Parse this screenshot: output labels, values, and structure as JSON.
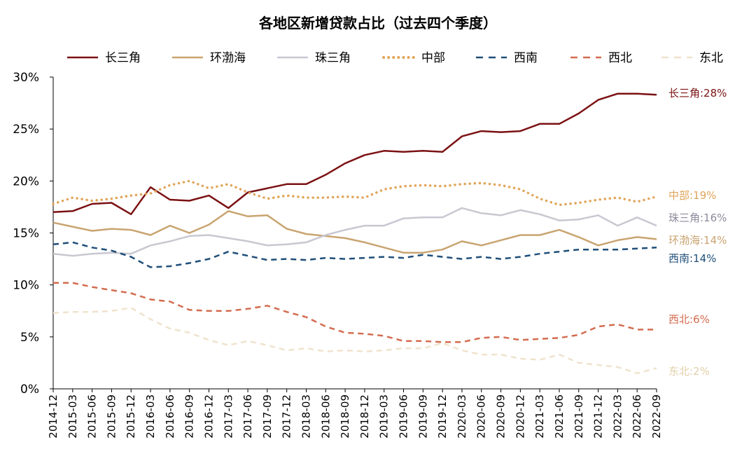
{
  "chart_data": {
    "type": "line",
    "title": "各地区新增贷款占比（过去四个季度）",
    "xlabel": "",
    "ylabel": "",
    "ylim": [
      0,
      30
    ],
    "yticks": [
      "0%",
      "5%",
      "10%",
      "15%",
      "20%",
      "25%",
      "30%"
    ],
    "grid": false,
    "legend_position": "top",
    "x": [
      "2014-12",
      "2015-03",
      "2015-06",
      "2015-09",
      "2015-12",
      "2016-03",
      "2016-06",
      "2016-09",
      "2016-12",
      "2017-03",
      "2017-06",
      "2017-09",
      "2017-12",
      "2018-03",
      "2018-06",
      "2018-09",
      "2018-12",
      "2019-03",
      "2019-06",
      "2019-09",
      "2019-12",
      "2020-03",
      "2020-06",
      "2020-09",
      "2020-12",
      "2021-03",
      "2021-06",
      "2021-09",
      "2021-12",
      "2022-03",
      "2022-06",
      "2022-09"
    ],
    "series": [
      {
        "name": "长三角",
        "color": "#7b1113",
        "dash": "solid",
        "end_label": "长三角:28%",
        "values": [
          17.0,
          17.1,
          17.8,
          17.9,
          16.8,
          19.4,
          18.2,
          18.1,
          18.6,
          17.4,
          18.9,
          19.3,
          19.7,
          19.7,
          20.6,
          21.7,
          22.5,
          22.9,
          22.8,
          22.9,
          22.8,
          24.3,
          24.8,
          24.7,
          24.8,
          25.5,
          25.5,
          26.5,
          27.8,
          28.4,
          28.4,
          28.3
        ]
      },
      {
        "name": "环渤海",
        "color": "#c9a470",
        "dash": "solid",
        "end_label": "环渤海:14%",
        "values": [
          16.0,
          15.6,
          15.2,
          15.4,
          15.3,
          14.8,
          15.7,
          15.0,
          15.8,
          17.1,
          16.6,
          16.7,
          15.4,
          14.9,
          14.7,
          14.5,
          14.1,
          13.6,
          13.1,
          13.1,
          13.4,
          14.2,
          13.8,
          14.3,
          14.8,
          14.8,
          15.3,
          14.6,
          13.8,
          14.3,
          14.6,
          14.4
        ]
      },
      {
        "name": "珠三角",
        "color": "#c8c8d2",
        "dash": "solid",
        "end_label": "珠三角:16%",
        "values": [
          13.0,
          12.8,
          13.0,
          13.1,
          13.0,
          13.8,
          14.2,
          14.7,
          14.8,
          14.5,
          14.2,
          13.8,
          13.9,
          14.1,
          14.8,
          15.3,
          15.7,
          15.7,
          16.4,
          16.5,
          16.5,
          17.4,
          16.9,
          16.7,
          17.2,
          16.8,
          16.2,
          16.3,
          16.7,
          15.7,
          16.5,
          15.7
        ]
      },
      {
        "name": "中部",
        "color": "#e1a55a",
        "dash": "dot",
        "end_label": "中部:19%",
        "values": [
          17.8,
          18.4,
          18.1,
          18.3,
          18.6,
          18.8,
          19.6,
          20.0,
          19.3,
          19.7,
          18.9,
          18.3,
          18.6,
          18.4,
          18.4,
          18.5,
          18.4,
          19.2,
          19.5,
          19.6,
          19.5,
          19.7,
          19.8,
          19.6,
          19.2,
          18.3,
          17.7,
          17.9,
          18.2,
          18.4,
          18.0,
          18.5
        ]
      },
      {
        "name": "西南",
        "color": "#1f4e79",
        "dash": "dash",
        "end_label": "西南:14%",
        "values": [
          13.9,
          14.1,
          13.6,
          13.3,
          12.7,
          11.7,
          11.8,
          12.1,
          12.5,
          13.2,
          12.8,
          12.4,
          12.5,
          12.4,
          12.6,
          12.5,
          12.6,
          12.7,
          12.6,
          12.9,
          12.7,
          12.5,
          12.7,
          12.5,
          12.7,
          13.0,
          13.2,
          13.4,
          13.4,
          13.4,
          13.5,
          13.6
        ]
      },
      {
        "name": "西北",
        "color": "#d36c50",
        "dash": "dash",
        "end_label": "西北:6%",
        "values": [
          10.2,
          10.2,
          9.8,
          9.5,
          9.2,
          8.6,
          8.4,
          7.6,
          7.5,
          7.5,
          7.7,
          8.0,
          7.4,
          6.9,
          6.0,
          5.4,
          5.3,
          5.1,
          4.6,
          4.6,
          4.5,
          4.5,
          4.9,
          5.0,
          4.7,
          4.8,
          4.9,
          5.2,
          6.0,
          6.2,
          5.7,
          5.7
        ]
      },
      {
        "name": "东北",
        "color": "#efe3cd",
        "dash": "dash",
        "end_label": "东北:2%",
        "values": [
          7.3,
          7.4,
          7.4,
          7.5,
          7.8,
          6.7,
          5.8,
          5.4,
          4.7,
          4.2,
          4.6,
          4.2,
          3.7,
          3.9,
          3.6,
          3.7,
          3.6,
          3.7,
          3.9,
          3.9,
          4.4,
          3.7,
          3.3,
          3.3,
          2.9,
          2.8,
          3.3,
          2.5,
          2.3,
          2.1,
          1.5,
          2.0
        ]
      }
    ]
  }
}
